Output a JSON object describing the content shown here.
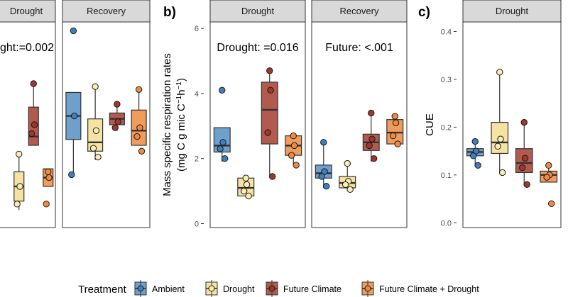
{
  "legend": {
    "title": "Treatment",
    "items": [
      {
        "label": "Ambient",
        "fill": "#6fa0cc",
        "point": "#3f7fbf"
      },
      {
        "label": "Drought",
        "fill": "#f5e3a3",
        "point": "#f8edb3"
      },
      {
        "label": "Future Climate",
        "fill": "#b35a4f",
        "point": "#a1362c"
      },
      {
        "label": "Future Climate + Drought",
        "fill": "#f09c5c",
        "point": "#f08a40"
      }
    ]
  },
  "chart_data": [
    {
      "type": "boxplot",
      "panel_label": "",
      "facets": [
        "Drought",
        "Recovery"
      ],
      "annotations": [
        "ght:=0.002",
        ""
      ],
      "ylabel": "",
      "ylim": [
        0.0,
        7.0
      ],
      "yticks": [],
      "series": [
        {
          "name": "Ambient",
          "facet": "Recovery",
          "box": {
            "q1": 3.0,
            "median": 3.8,
            "q3": 4.6,
            "lo": 1.8,
            "hi": 4.6
          },
          "points": [
            6.7,
            3.8,
            1.8
          ]
        },
        {
          "name": "Drought",
          "facet": "Drought",
          "box": {
            "q1": 0.9,
            "median": 1.4,
            "q3": 1.9,
            "lo": 0.6,
            "hi": 2.6
          },
          "points": [
            2.5,
            1.4,
            0.8
          ]
        },
        {
          "name": "Drought",
          "facet": "Recovery",
          "box": {
            "q1": 2.6,
            "median": 2.9,
            "q3": 3.7,
            "lo": 2.3,
            "hi": 4.8
          },
          "points": [
            4.8,
            3.3,
            2.7,
            2.4
          ]
        },
        {
          "name": "Future Climate",
          "facet": "Drought",
          "box": {
            "q1": 2.8,
            "median": 3.1,
            "q3": 4.1,
            "lo": 2.8,
            "hi": 5.0
          },
          "points": [
            4.9,
            3.5,
            3.2
          ]
        },
        {
          "name": "Future Climate",
          "facet": "Recovery",
          "box": {
            "q1": 3.5,
            "median": 3.7,
            "q3": 3.9,
            "lo": 3.3,
            "hi": 4.2
          },
          "points": [
            4.2,
            3.6,
            3.4
          ]
        },
        {
          "name": "Future Climate + Drought",
          "facet": "Drought",
          "box": {
            "q1": 1.4,
            "median": 1.7,
            "q3": 2.0,
            "lo": 1.4,
            "hi": 2.0
          },
          "points": [
            1.9,
            1.7,
            0.8
          ]
        },
        {
          "name": "Future Climate + Drought",
          "facet": "Recovery",
          "box": {
            "q1": 2.8,
            "median": 3.3,
            "q3": 4.0,
            "lo": 2.8,
            "hi": 4.8
          },
          "points": [
            4.7,
            3.4,
            3.1,
            2.6
          ]
        }
      ]
    },
    {
      "type": "boxplot",
      "panel_label": "b)",
      "facets": [
        "Drought",
        "Recovery"
      ],
      "annotations": [
        "Drought: =0.016",
        "Future: <.001"
      ],
      "ylabel": "Mass specific respiration rates",
      "ylabel2": "(mg C g mic C",
      "ylabel2_sup": "−1",
      "ylabel2_tail": "h",
      "ylim": [
        -0.12,
        6.2
      ],
      "yticks": [
        0,
        2,
        4,
        6
      ],
      "series": [
        {
          "name": "Ambient",
          "facet": "Drought",
          "box": {
            "q1": 2.2,
            "median": 2.4,
            "q3": 2.95,
            "lo": 1.9,
            "hi": 2.95
          },
          "points": [
            4.1,
            2.5,
            2.3,
            2.0
          ]
        },
        {
          "name": "Drought",
          "facet": "Drought",
          "box": {
            "q1": 0.85,
            "median": 1.1,
            "q3": 1.4,
            "lo": 0.8,
            "hi": 1.45
          },
          "points": [
            1.4,
            1.2,
            1.0,
            0.85
          ]
        },
        {
          "name": "Future Climate",
          "facet": "Drought",
          "box": {
            "q1": 2.45,
            "median": 3.5,
            "q3": 4.35,
            "lo": 1.45,
            "hi": 4.7
          },
          "points": [
            4.7,
            4.1,
            2.8,
            1.45
          ]
        },
        {
          "name": "Future Climate + Drought",
          "facet": "Drought",
          "box": {
            "q1": 2.1,
            "median": 2.4,
            "q3": 2.7,
            "lo": 1.8,
            "hi": 2.7
          },
          "points": [
            2.7,
            2.4,
            2.1,
            1.8
          ]
        },
        {
          "name": "Ambient",
          "facet": "Recovery",
          "box": {
            "q1": 1.4,
            "median": 1.55,
            "q3": 1.8,
            "lo": 1.1,
            "hi": 2.5
          },
          "points": [
            2.5,
            1.6,
            1.45,
            1.15
          ]
        },
        {
          "name": "Drought",
          "facet": "Recovery",
          "box": {
            "q1": 1.1,
            "median": 1.25,
            "q3": 1.45,
            "lo": 1.0,
            "hi": 1.85
          },
          "points": [
            1.85,
            1.3,
            1.2,
            1.05
          ]
        },
        {
          "name": "Future Climate",
          "facet": "Recovery",
          "box": {
            "q1": 2.25,
            "median": 2.5,
            "q3": 2.75,
            "lo": 1.9,
            "hi": 3.4
          },
          "points": [
            3.4,
            2.6,
            2.4,
            2.0
          ]
        },
        {
          "name": "Future Climate + Drought",
          "facet": "Recovery",
          "box": {
            "q1": 2.45,
            "median": 2.8,
            "q3": 3.2,
            "lo": 2.45,
            "hi": 3.3
          },
          "points": [
            3.3,
            3.1,
            2.7,
            2.45
          ]
        }
      ]
    },
    {
      "type": "boxplot",
      "panel_label": "c)",
      "facets": [
        "Drought"
      ],
      "annotations": [
        ""
      ],
      "ylabel": "CUE",
      "ylim": [
        -0.01,
        0.42
      ],
      "yticks": [
        0.0,
        0.1,
        0.2,
        0.3,
        0.4
      ],
      "ytick_labels": [
        "0.0",
        "0.1",
        "0.2",
        "0.3",
        "0.4"
      ],
      "series": [
        {
          "name": "Ambient",
          "facet": "Drought",
          "box": {
            "q1": 0.14,
            "median": 0.148,
            "q3": 0.155,
            "lo": 0.12,
            "hi": 0.17
          },
          "points": [
            0.17,
            0.15,
            0.14,
            0.12
          ]
        },
        {
          "name": "Drought",
          "facet": "Drought",
          "box": {
            "q1": 0.145,
            "median": 0.168,
            "q3": 0.21,
            "lo": 0.105,
            "hi": 0.32
          },
          "points": [
            0.315,
            0.175,
            0.16,
            0.105
          ]
        },
        {
          "name": "Future Climate",
          "facet": "Drought",
          "box": {
            "q1": 0.105,
            "median": 0.125,
            "q3": 0.155,
            "lo": 0.08,
            "hi": 0.21
          },
          "points": [
            0.21,
            0.135,
            0.115,
            0.08
          ]
        },
        {
          "name": "Future Climate + Drought",
          "facet": "Drought",
          "box": {
            "q1": 0.085,
            "median": 0.1,
            "q3": 0.108,
            "lo": 0.085,
            "hi": 0.12
          },
          "points": [
            0.12,
            0.1,
            0.095,
            0.04
          ]
        }
      ]
    }
  ]
}
